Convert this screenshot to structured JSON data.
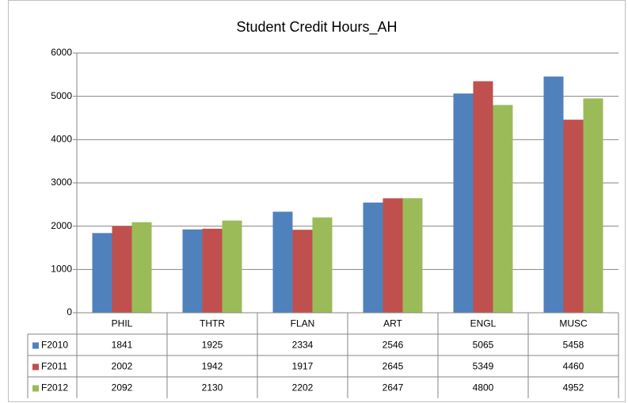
{
  "chart_data": {
    "type": "bar",
    "title": "Student Credit Hours_AH",
    "categories": [
      "PHIL",
      "THTR",
      "FLAN",
      "ART",
      "ENGL",
      "MUSC"
    ],
    "series": [
      {
        "name": "F2010",
        "color": "#4f81bd",
        "values": [
          1841,
          1925,
          2334,
          2546,
          5065,
          5458
        ]
      },
      {
        "name": "F2011",
        "color": "#c0504d",
        "values": [
          2002,
          1942,
          1917,
          2645,
          5349,
          4460
        ]
      },
      {
        "name": "F2012",
        "color": "#9bbb59",
        "values": [
          2092,
          2130,
          2202,
          2647,
          4800,
          4952
        ]
      }
    ],
    "ylim": [
      0,
      6000
    ],
    "yticks": [
      0,
      1000,
      2000,
      3000,
      4000,
      5000,
      6000
    ],
    "grid": true
  }
}
